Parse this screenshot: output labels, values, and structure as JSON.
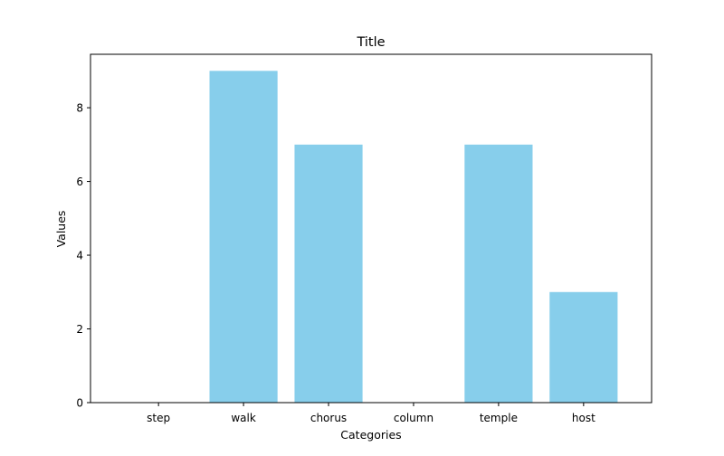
{
  "chart_data": {
    "type": "bar",
    "title": "Title",
    "xlabel": "Categories",
    "ylabel": "Values",
    "categories": [
      "step",
      "walk",
      "chorus",
      "column",
      "temple",
      "host"
    ],
    "values": [
      0,
      9,
      7,
      0,
      7,
      3
    ],
    "ylim": [
      0,
      9.45
    ],
    "yticks": [
      0,
      2,
      4,
      6,
      8
    ],
    "grid": false,
    "bar_color": "#87ceeb"
  }
}
